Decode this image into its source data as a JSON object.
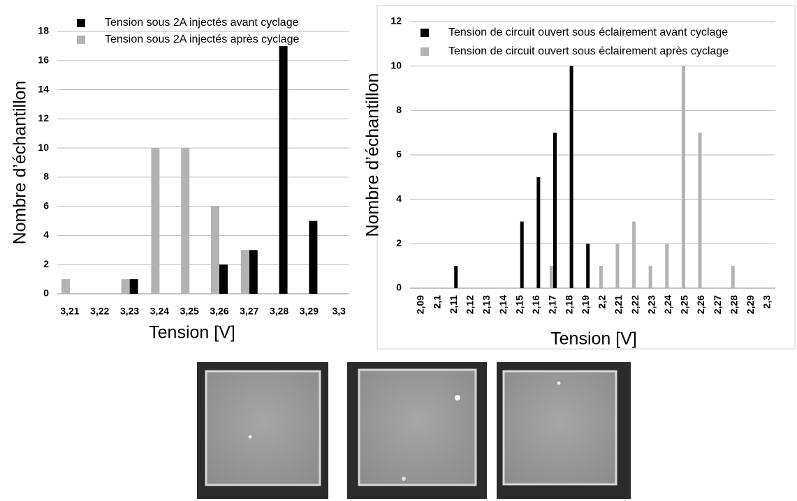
{
  "chart_data": [
    {
      "type": "bar",
      "x_label": "Tension [V]",
      "y_label": "Nombre d’échantillon",
      "categories": [
        "3,21",
        "3,22",
        "3,23",
        "3,24",
        "3,25",
        "3,26",
        "3,27",
        "3,28",
        "3,29",
        "3,3"
      ],
      "series": [
        {
          "name": "Tension sous 2A injectés avant cyclage",
          "color": "#000000",
          "values": [
            0,
            0,
            1,
            0,
            0,
            2,
            3,
            17,
            5,
            0
          ]
        },
        {
          "name": "Tension sous 2A injectés après cyclage",
          "color": "#b3b3b3",
          "values": [
            1,
            0,
            1,
            10,
            10,
            6,
            3,
            0,
            0,
            0
          ]
        }
      ],
      "ylim": [
        0,
        18
      ],
      "yticks": [
        0,
        2,
        4,
        6,
        8,
        10,
        12,
        14,
        16,
        18
      ],
      "grid": true
    },
    {
      "type": "bar",
      "x_label": "Tension [V]",
      "y_label": "Nombre d’échantillon",
      "categories": [
        "2,09",
        "2,1",
        "2,11",
        "2,12",
        "2,13",
        "2,14",
        "2,15",
        "2,16",
        "2,17",
        "2,18",
        "2,19",
        "2,2",
        "2,21",
        "2,22",
        "2,23",
        "2,24",
        "2,25",
        "2,26",
        "2,27",
        "2,28",
        "2,29",
        "2,3"
      ],
      "series": [
        {
          "name": "Tension de circuit ouvert sous éclairement avant cyclage",
          "color": "#000000",
          "values": [
            0,
            0,
            1,
            0,
            0,
            0,
            3,
            5,
            7,
            10,
            2,
            0,
            0,
            0,
            0,
            0,
            0,
            0,
            0,
            0,
            0,
            0
          ]
        },
        {
          "name": "Tension de circuit ouvert sous éclairement après cyclage",
          "color": "#b3b3b3",
          "values": [
            0,
            0,
            0,
            0,
            0,
            0,
            0,
            0,
            1,
            0,
            0,
            1,
            2,
            3,
            1,
            2,
            10,
            7,
            0,
            1,
            0,
            0
          ]
        }
      ],
      "ylim": [
        0,
        12
      ],
      "yticks": [
        0,
        2,
        4,
        6,
        8,
        10,
        12
      ],
      "grid": true
    }
  ]
}
